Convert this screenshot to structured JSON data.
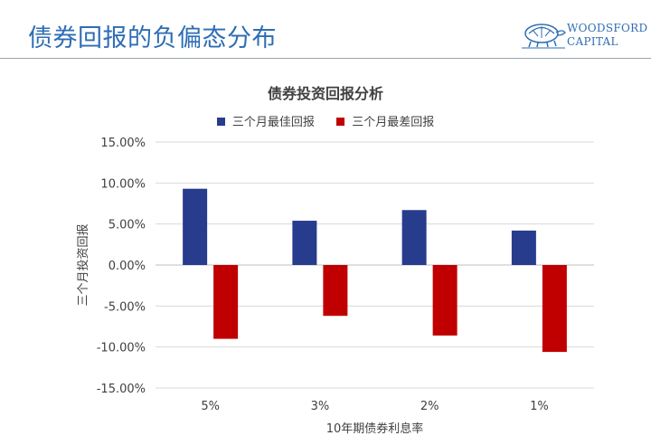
{
  "slide": {
    "title": "债券回报的负偏态分布",
    "logo": {
      "line1": "WOODSFORD",
      "line2": "CAPITAL",
      "icon": "tortoise-logo-icon"
    }
  },
  "chart_data": {
    "type": "bar",
    "title": "债券投资回报分析",
    "xlabel": "10年期债券利息率",
    "ylabel": "三个月投资回报",
    "categories": [
      "5%",
      "3%",
      "2%",
      "1%"
    ],
    "series": [
      {
        "name": "三个月最佳回报",
        "color": "#283c8e",
        "values": [
          0.093,
          0.054,
          0.067,
          0.042
        ]
      },
      {
        "name": "三个月最差回报",
        "color": "#c00000",
        "values": [
          -0.09,
          -0.062,
          -0.086,
          -0.106
        ]
      }
    ],
    "ylim": [
      -0.15,
      0.15
    ],
    "yticks": [
      "15.00%",
      "10.00%",
      "5.00%",
      "0.00%",
      "-5.00%",
      "-10.00%",
      "-15.00%"
    ],
    "ytick_values": [
      0.15,
      0.1,
      0.05,
      0.0,
      -0.05,
      -0.1,
      -0.15
    ],
    "grid": true,
    "legend_position": "top-center"
  }
}
